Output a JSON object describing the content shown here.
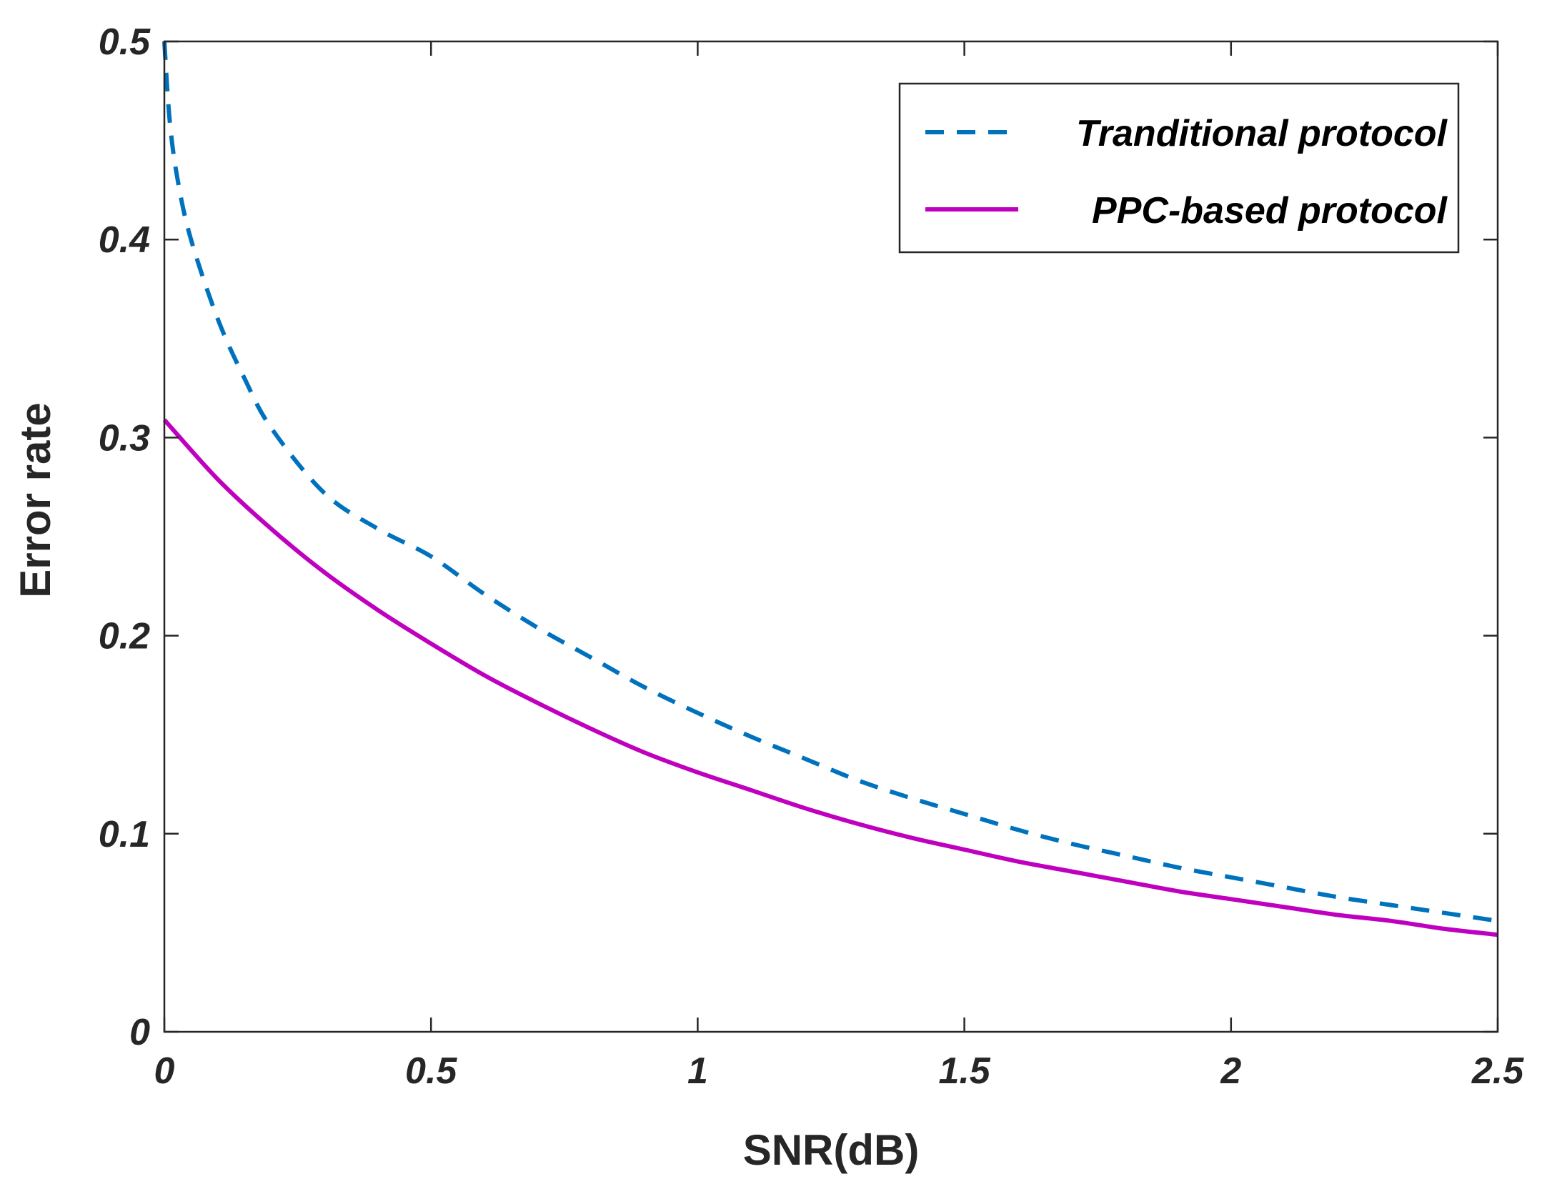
{
  "chart_data": {
    "type": "line",
    "xlabel": "SNR(dB)",
    "ylabel": "Error rate",
    "xlim": [
      0,
      2.5
    ],
    "ylim": [
      0,
      0.5
    ],
    "xticks": [
      "0",
      "0.5",
      "1",
      "1.5",
      "2",
      "2.5"
    ],
    "yticks": [
      "0",
      "0.1",
      "0.2",
      "0.3",
      "0.4",
      "0.5"
    ],
    "grid": false,
    "legend_position": "top-right",
    "series": [
      {
        "name": "Tranditional protocol",
        "style": "dashed",
        "color": "#0072BD",
        "x": [
          0,
          0.01,
          0.025,
          0.05,
          0.1,
          0.15,
          0.2,
          0.3,
          0.4,
          0.5,
          0.6,
          0.7,
          0.8,
          0.9,
          1.0,
          1.1,
          1.2,
          1.3,
          1.4,
          1.5,
          1.6,
          1.7,
          1.8,
          1.9,
          2.0,
          2.1,
          2.2,
          2.3,
          2.4,
          2.5
        ],
        "y": [
          0.5,
          0.46,
          0.43,
          0.4,
          0.36,
          0.33,
          0.305,
          0.272,
          0.254,
          0.24,
          0.221,
          0.204,
          0.189,
          0.174,
          0.161,
          0.149,
          0.138,
          0.127,
          0.118,
          0.11,
          0.102,
          0.095,
          0.089,
          0.083,
          0.078,
          0.073,
          0.068,
          0.064,
          0.06,
          0.056
        ]
      },
      {
        "name": "PPC-based protocol",
        "style": "solid",
        "color": "#BF00BF",
        "x": [
          0,
          0.1,
          0.2,
          0.3,
          0.4,
          0.5,
          0.6,
          0.7,
          0.8,
          0.9,
          1.0,
          1.1,
          1.2,
          1.3,
          1.4,
          1.5,
          1.6,
          1.7,
          1.8,
          1.9,
          2.0,
          2.1,
          2.2,
          2.3,
          2.4,
          2.5
        ],
        "y": [
          0.309,
          0.279,
          0.254,
          0.232,
          0.213,
          0.196,
          0.18,
          0.166,
          0.153,
          0.141,
          0.131,
          0.122,
          0.113,
          0.105,
          0.098,
          0.092,
          0.086,
          0.081,
          0.076,
          0.071,
          0.067,
          0.063,
          0.059,
          0.056,
          0.052,
          0.049
        ]
      }
    ]
  }
}
